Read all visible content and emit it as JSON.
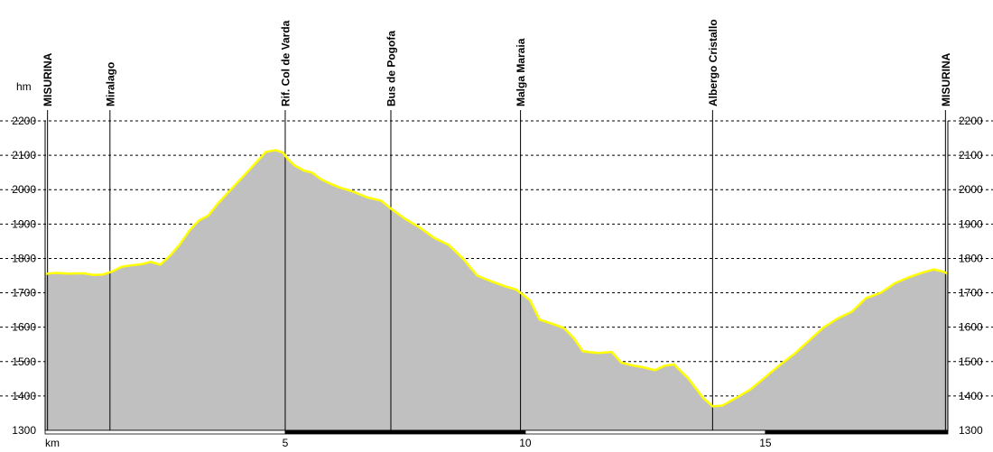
{
  "chart_data": {
    "type": "area",
    "xlabel": "km",
    "ylabel": "hm",
    "xlim": [
      0,
      18.8
    ],
    "ylim": [
      1300,
      2200
    ],
    "grid": true,
    "x_ticks": [
      5,
      10,
      15
    ],
    "y_ticks": [
      1300,
      1400,
      1500,
      1600,
      1700,
      1800,
      1900,
      2000,
      2100,
      2200
    ],
    "colors": {
      "fill": "#c0c0c0",
      "line": "#ffff00",
      "grid": "#000000"
    },
    "waypoints": [
      {
        "name": "MISURINA",
        "km": 0.05
      },
      {
        "name": "Miralago",
        "km": 1.35
      },
      {
        "name": "Rif. Col de Varda",
        "km": 5.0
      },
      {
        "name": "Bus de Pogofa",
        "km": 7.2
      },
      {
        "name": "Malga Maraia",
        "km": 9.9
      },
      {
        "name": "Albergo Cristallo",
        "km": 13.9
      },
      {
        "name": "MISURINA",
        "km": 18.75
      }
    ],
    "series": [
      {
        "x": [
          0,
          0.2,
          0.5,
          0.8,
          1.0,
          1.2,
          1.4,
          1.6,
          1.8,
          2.0,
          2.2,
          2.4,
          2.6,
          2.8,
          3.0,
          3.2,
          3.4,
          3.6,
          3.8,
          4.0,
          4.2,
          4.4,
          4.6,
          4.8,
          4.95,
          5.05,
          5.2,
          5.4,
          5.55,
          5.75,
          5.9,
          6.1,
          6.4,
          6.7,
          7.0,
          7.2,
          7.5,
          7.8,
          8.1,
          8.4,
          8.7,
          9.0,
          9.3,
          9.6,
          9.8,
          9.95,
          10.1,
          10.3,
          10.6,
          10.8,
          11.0,
          11.2,
          11.5,
          11.8,
          12.0,
          12.2,
          12.5,
          12.7,
          12.9,
          13.1,
          13.4,
          13.7,
          13.9,
          14.1,
          14.4,
          14.7,
          15.0,
          15.3,
          15.6,
          15.9,
          16.2,
          16.5,
          16.8,
          17.1,
          17.4,
          17.7,
          18.0,
          18.3,
          18.5,
          18.7,
          18.8
        ],
        "y": [
          1755,
          1758,
          1756,
          1757,
          1752,
          1753,
          1762,
          1776,
          1780,
          1783,
          1790,
          1782,
          1808,
          1840,
          1880,
          1910,
          1925,
          1960,
          1990,
          2020,
          2050,
          2080,
          2110,
          2115,
          2108,
          2090,
          2070,
          2055,
          2050,
          2030,
          2020,
          2008,
          1995,
          1978,
          1968,
          1945,
          1915,
          1890,
          1860,
          1840,
          1800,
          1750,
          1733,
          1718,
          1710,
          1695,
          1678,
          1622,
          1608,
          1598,
          1570,
          1530,
          1525,
          1528,
          1497,
          1490,
          1482,
          1475,
          1488,
          1492,
          1450,
          1395,
          1370,
          1372,
          1395,
          1420,
          1455,
          1490,
          1522,
          1560,
          1598,
          1625,
          1645,
          1685,
          1700,
          1728,
          1746,
          1760,
          1768,
          1762,
          1755
        ]
      }
    ]
  }
}
